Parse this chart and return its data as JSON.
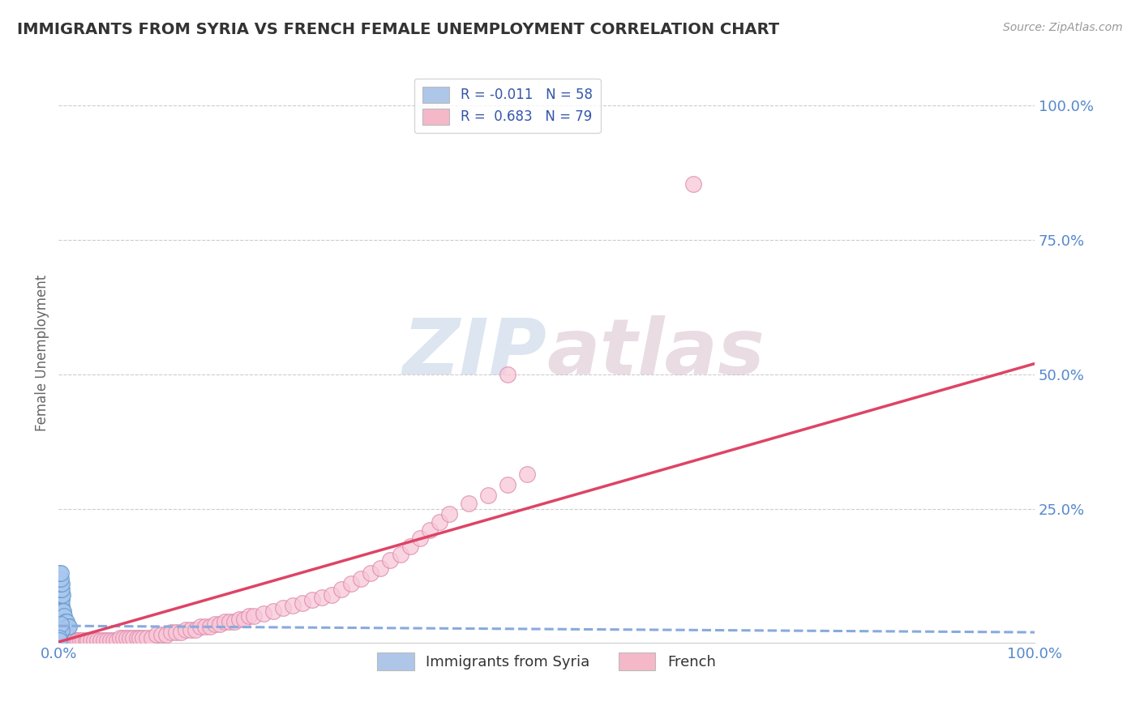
{
  "title": "IMMIGRANTS FROM SYRIA VS FRENCH FEMALE UNEMPLOYMENT CORRELATION CHART",
  "source_text": "Source: ZipAtlas.com",
  "ylabel": "Female Unemployment",
  "y_tick_labels": [
    "25.0%",
    "50.0%",
    "75.0%",
    "100.0%"
  ],
  "y_tick_positions": [
    0.25,
    0.5,
    0.75,
    1.0
  ],
  "xlim": [
    0.0,
    1.0
  ],
  "ylim": [
    0.0,
    1.08
  ],
  "legend_entries": [
    {
      "label": "R = -0.011   N = 58",
      "color": "#aec6e8"
    },
    {
      "label": "R =  0.683   N = 79",
      "color": "#f4b8c8"
    }
  ],
  "legend_bottom": [
    "Immigrants from Syria",
    "French"
  ],
  "legend_bottom_colors": [
    "#aec6e8",
    "#f4b8c8"
  ],
  "watermark": "ZIPatlas",
  "watermark_color": "#ccd8e8",
  "background_color": "#ffffff",
  "grid_color": "#cccccc",
  "title_color": "#333333",
  "axis_label_color": "#5588cc",
  "blue_scatter_x": [
    0.001,
    0.001,
    0.001,
    0.001,
    0.001,
    0.001,
    0.002,
    0.002,
    0.002,
    0.002,
    0.002,
    0.002,
    0.003,
    0.003,
    0.003,
    0.003,
    0.003,
    0.003,
    0.004,
    0.004,
    0.004,
    0.004,
    0.005,
    0.005,
    0.005,
    0.005,
    0.006,
    0.006,
    0.006,
    0.007,
    0.007,
    0.008,
    0.008,
    0.009,
    0.01,
    0.011,
    0.001,
    0.002,
    0.003,
    0.004,
    0.001,
    0.002,
    0.003,
    0.001,
    0.002,
    0.003,
    0.001,
    0.002,
    0.001,
    0.002,
    0.001,
    0.001,
    0.001,
    0.002,
    0.003,
    0.002,
    0.001,
    0.001
  ],
  "blue_scatter_y": [
    0.03,
    0.04,
    0.05,
    0.06,
    0.07,
    0.08,
    0.03,
    0.04,
    0.05,
    0.06,
    0.07,
    0.08,
    0.03,
    0.04,
    0.05,
    0.06,
    0.07,
    0.08,
    0.03,
    0.04,
    0.05,
    0.06,
    0.03,
    0.04,
    0.05,
    0.06,
    0.03,
    0.04,
    0.05,
    0.03,
    0.04,
    0.03,
    0.04,
    0.03,
    0.03,
    0.03,
    0.09,
    0.09,
    0.09,
    0.09,
    0.1,
    0.1,
    0.1,
    0.11,
    0.11,
    0.11,
    0.12,
    0.12,
    0.13,
    0.13,
    0.025,
    0.02,
    0.015,
    0.02,
    0.025,
    0.035,
    0.01,
    0.005
  ],
  "pink_scatter_x": [
    0.005,
    0.007,
    0.008,
    0.01,
    0.012,
    0.014,
    0.016,
    0.018,
    0.02,
    0.022,
    0.025,
    0.028,
    0.03,
    0.033,
    0.036,
    0.04,
    0.043,
    0.046,
    0.05,
    0.053,
    0.056,
    0.06,
    0.063,
    0.066,
    0.07,
    0.073,
    0.076,
    0.08,
    0.083,
    0.086,
    0.09,
    0.095,
    0.1,
    0.105,
    0.11,
    0.115,
    0.12,
    0.125,
    0.13,
    0.135,
    0.14,
    0.145,
    0.15,
    0.155,
    0.16,
    0.165,
    0.17,
    0.175,
    0.18,
    0.185,
    0.19,
    0.195,
    0.2,
    0.21,
    0.22,
    0.23,
    0.24,
    0.25,
    0.26,
    0.27,
    0.28,
    0.29,
    0.3,
    0.31,
    0.32,
    0.33,
    0.34,
    0.35,
    0.36,
    0.37,
    0.38,
    0.39,
    0.4,
    0.42,
    0.44,
    0.46,
    0.48,
    0.65,
    0.46
  ],
  "pink_scatter_y": [
    0.005,
    0.005,
    0.005,
    0.005,
    0.005,
    0.005,
    0.005,
    0.005,
    0.005,
    0.005,
    0.005,
    0.005,
    0.005,
    0.005,
    0.005,
    0.005,
    0.005,
    0.005,
    0.005,
    0.005,
    0.005,
    0.005,
    0.01,
    0.01,
    0.01,
    0.01,
    0.01,
    0.01,
    0.01,
    0.01,
    0.01,
    0.01,
    0.015,
    0.015,
    0.015,
    0.02,
    0.02,
    0.02,
    0.025,
    0.025,
    0.025,
    0.03,
    0.03,
    0.03,
    0.035,
    0.035,
    0.04,
    0.04,
    0.04,
    0.045,
    0.045,
    0.05,
    0.05,
    0.055,
    0.06,
    0.065,
    0.07,
    0.075,
    0.08,
    0.085,
    0.09,
    0.1,
    0.11,
    0.12,
    0.13,
    0.14,
    0.155,
    0.165,
    0.18,
    0.195,
    0.21,
    0.225,
    0.24,
    0.26,
    0.275,
    0.295,
    0.315,
    0.855,
    0.5
  ],
  "blue_line_x": [
    0.0,
    1.0
  ],
  "blue_line_y": [
    0.032,
    0.02
  ],
  "pink_line_x": [
    0.0,
    1.0
  ],
  "pink_line_y": [
    0.002,
    0.52
  ],
  "blue_line_color": "#88aadd",
  "pink_line_color": "#dd4466",
  "scatter_blue_color": "#aac8ee",
  "scatter_pink_color": "#f8c8d8",
  "scatter_blue_edge": "#6699cc",
  "scatter_pink_edge": "#dd88aa"
}
